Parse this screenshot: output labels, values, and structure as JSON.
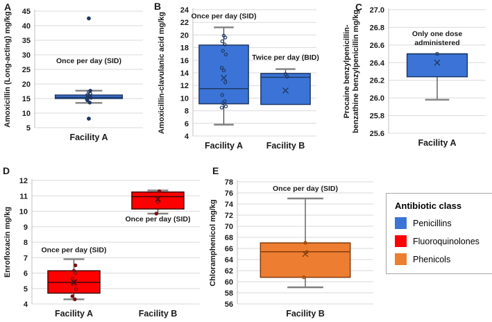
{
  "legend": {
    "title": "Antibiotic class",
    "items": [
      {
        "label": "Penicillins",
        "color": "#3B74D6"
      },
      {
        "label": "Fluoroquinolones",
        "color": "#FF0000"
      },
      {
        "label": "Phenicols",
        "color": "#ED7D31"
      }
    ]
  },
  "chart_data": [
    {
      "type": "box",
      "panel": "A",
      "ylabel_lines": [
        "Amoxicillin (Long-acting) mg/kg"
      ],
      "categories": [
        "Facility A"
      ],
      "ylim": [
        5,
        45
      ],
      "yticks": [
        5,
        10,
        15,
        20,
        25,
        30,
        35,
        40,
        45
      ],
      "ytick_labels": [
        "5",
        "10",
        "15",
        "20",
        "25",
        "30",
        "35",
        "40",
        "45"
      ],
      "box_fill": "#3B74D6",
      "box_stroke": "#1F3864",
      "point_color": "#1F3864",
      "annotations": [
        {
          "category_index": 0,
          "y": 27.2,
          "lines": [
            "Once per day (SID)"
          ]
        }
      ],
      "series": [
        {
          "category": "Facility A",
          "whisker_low": 13.5,
          "q1": 15.0,
          "median": 15.4,
          "q3": 16.2,
          "whisker_high": 17.7,
          "mean": 15.6,
          "points": [
            17.3,
            16.6,
            16.2,
            15.9,
            15.6,
            15.3,
            14.9
          ],
          "filled_points": [
            17.7,
            14.4,
            13.6
          ],
          "outliers": [
            42.5,
            8.1
          ]
        }
      ]
    },
    {
      "type": "box",
      "panel": "B",
      "ylabel_lines": [
        "Amoxicillin-clavulanic acid mg/kg"
      ],
      "categories": [
        "Facility A",
        "Facility B"
      ],
      "ylim": [
        4,
        24
      ],
      "yticks": [
        4,
        6,
        8,
        10,
        12,
        14,
        16,
        18,
        20,
        22,
        24
      ],
      "ytick_labels": [
        "4",
        "6",
        "8",
        "10",
        "12",
        "14",
        "16",
        "18",
        "20",
        "22",
        "24"
      ],
      "box_fill": "#3B74D6",
      "box_stroke": "#1F3864",
      "point_color": "#1F3864",
      "annotations": [
        {
          "category_index": 0,
          "y": 22.6,
          "lines": [
            "Once per day (SID)"
          ]
        },
        {
          "category_index": 1,
          "y": 16.1,
          "lines": [
            "Twice per day (BID)"
          ]
        }
      ],
      "series": [
        {
          "category": "Facility A",
          "whisker_low": 5.8,
          "q1": 9.1,
          "median": 11.5,
          "q3": 18.4,
          "whisker_high": 21.2,
          "mean": 13.2,
          "points": [
            19.9,
            19.6,
            19.0,
            18.5,
            17.5,
            16.9,
            14.8,
            14.4,
            12.5,
            10.5,
            9.5,
            9.2,
            8.7,
            8.5
          ],
          "filled_points": [],
          "outliers": []
        },
        {
          "category": "Facility B",
          "whisker_low": null,
          "q1": 9.0,
          "median": 13.3,
          "q3": 13.9,
          "whisker_high": 14.6,
          "mean": 11.2,
          "points": [
            13.8,
            13.4
          ],
          "filled_points": [],
          "outliers": []
        }
      ]
    },
    {
      "type": "box",
      "panel": "C",
      "ylabel_lines": [
        "Procaine benzylpenicillin-",
        "benzathine benzylpenicillin mg/kg"
      ],
      "categories": [
        "Facility A"
      ],
      "ylim": [
        25.6,
        27.0
      ],
      "yticks": [
        25.6,
        25.8,
        26.0,
        26.2,
        26.4,
        26.6,
        26.8,
        27.0
      ],
      "ytick_labels": [
        "25.6",
        "25.8",
        "26.0",
        "26.2",
        "26.4",
        "26.6",
        "26.8",
        "27.0"
      ],
      "box_fill": "#3B74D6",
      "box_stroke": "#1F3864",
      "point_color": "#1F3864",
      "annotations": [
        {
          "category_index": 0,
          "y": 26.7,
          "lines": [
            "Only one dose",
            "administered"
          ]
        }
      ],
      "series": [
        {
          "category": "Facility A",
          "whisker_low": 25.98,
          "q1": 26.24,
          "median": 26.5,
          "q3": 26.5,
          "whisker_high": null,
          "mean": 26.4,
          "points": [
            26.5
          ],
          "filled_points": [],
          "outliers": []
        }
      ]
    },
    {
      "type": "box",
      "panel": "D",
      "ylabel_lines": [
        "Enrofloxacin mg/kg"
      ],
      "categories": [
        "Facility A",
        "Facility B"
      ],
      "ylim": [
        4,
        12
      ],
      "yticks": [
        4,
        5,
        6,
        7,
        8,
        9,
        10,
        11,
        12
      ],
      "ytick_labels": [
        "4",
        "5",
        "6",
        "7",
        "8",
        "9",
        "10",
        "11",
        "12"
      ],
      "box_fill": "#FF0000",
      "box_stroke": "#3B0A0A",
      "point_color": "#7B1113",
      "annotations": [
        {
          "category_index": 0,
          "y": 7.35,
          "lines": [
            "Once per day (SID)"
          ]
        },
        {
          "category_index": 1,
          "y": 9.35,
          "lines": [
            "Once per day (SID)"
          ]
        }
      ],
      "series": [
        {
          "category": "Facility A",
          "whisker_low": 4.3,
          "q1": 4.7,
          "median": 5.4,
          "q3": 6.15,
          "whisker_high": 6.9,
          "mean": 5.4,
          "points": [
            6.15,
            6.0,
            5.65,
            5.45,
            5.3,
            4.95
          ],
          "filled_points": [
            6.5,
            4.5,
            4.3
          ],
          "outliers": []
        },
        {
          "category": "Facility B",
          "whisker_low": 9.85,
          "q1": 10.15,
          "median": 10.95,
          "q3": 11.25,
          "whisker_high": 11.35,
          "mean": 10.8,
          "points": [
            10.6
          ],
          "filled_points": [
            11.3,
            9.85
          ],
          "outliers": []
        }
      ]
    },
    {
      "type": "box",
      "panel": "E",
      "ylabel_lines": [
        "Chloramphenicol mg/kg"
      ],
      "categories": [
        "Facility B"
      ],
      "ylim": [
        56,
        78
      ],
      "yticks": [
        56,
        58,
        60,
        62,
        64,
        66,
        68,
        70,
        72,
        74,
        76,
        78
      ],
      "ytick_labels": [
        "56",
        "58",
        "60",
        "62",
        "64",
        "66",
        "68",
        "70",
        "72",
        "74",
        "76",
        "78"
      ],
      "box_fill": "#ED7D31",
      "box_stroke": "#843C0C",
      "point_color": "#9C4A06",
      "annotations": [
        {
          "category_index": 0,
          "y": 76.4,
          "lines": [
            "Once per day (SID)"
          ]
        }
      ],
      "series": [
        {
          "category": "Facility B",
          "whisker_low": 59.0,
          "q1": 60.8,
          "median": 65.4,
          "q3": 67.0,
          "whisker_high": 75.0,
          "mean": 65.0,
          "points": [
            67.0,
            65.4,
            60.8
          ],
          "filled_points": [],
          "outliers": []
        }
      ]
    }
  ]
}
